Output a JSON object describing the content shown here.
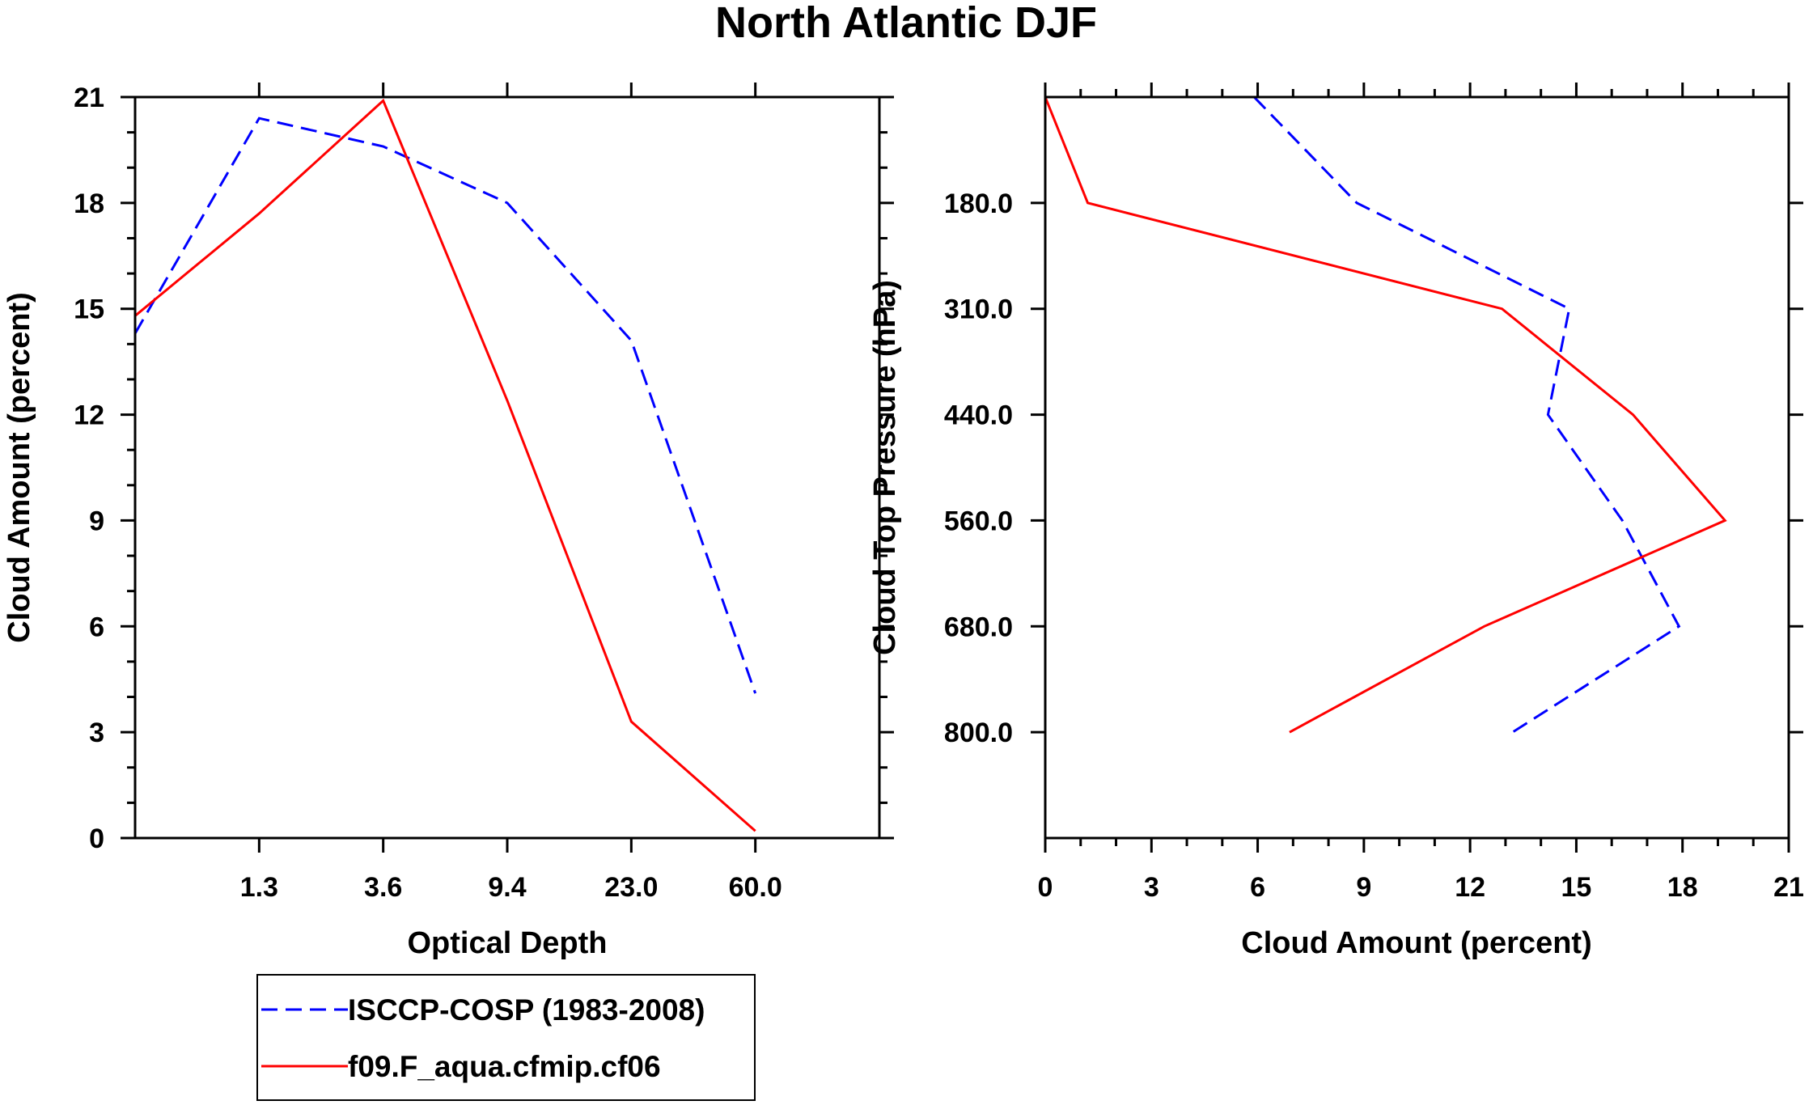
{
  "title": "North Atlantic DJF",
  "colors": {
    "obs": "#0000ff",
    "model": "#ff0000",
    "axes": "#000000"
  },
  "legend": {
    "entries": [
      {
        "label": "ISCCP-COSP (1983-2008)",
        "style": "dashed",
        "color": "#0000ff"
      },
      {
        "label": "f09.F_aqua.cfmip.cf06",
        "style": "solid",
        "color": "#ff0000"
      }
    ]
  },
  "chart_data": [
    {
      "type": "line",
      "xlabel": "Optical Depth",
      "ylabel": "Cloud Amount (percent)",
      "x_tick_labels": [
        "1.3",
        "3.6",
        "9.4",
        "23.0",
        "60.0"
      ],
      "y_ticks": [
        0,
        3,
        6,
        9,
        12,
        15,
        18,
        21
      ],
      "ylim": [
        0,
        21
      ],
      "x_bins": [
        "0.3",
        "1.3",
        "3.6",
        "9.4",
        "23.0",
        "60.0",
        "379"
      ],
      "series": [
        {
          "name": "ISCCP-COSP (1983-2008)",
          "style": "dashed",
          "values": [
            14.3,
            20.4,
            19.6,
            18.0,
            14.1,
            4.1
          ]
        },
        {
          "name": "f09.F_aqua.cfmip.cf06",
          "style": "solid",
          "values": [
            14.8,
            17.7,
            20.9,
            12.4,
            3.3,
            0.2
          ]
        }
      ]
    },
    {
      "type": "line",
      "xlabel": "Cloud Amount (percent)",
      "ylabel": "Cloud Top Pressure (hPa)",
      "x_ticks": [
        0,
        3,
        6,
        9,
        12,
        15,
        18,
        21
      ],
      "xlim": [
        0,
        21
      ],
      "y_tick_labels": [
        "180.0",
        "310.0",
        "440.0",
        "560.0",
        "680.0",
        "800.0"
      ],
      "y_bins": [
        "50",
        "180.0",
        "310.0",
        "440.0",
        "560.0",
        "680.0",
        "800.0",
        "1000"
      ],
      "series": [
        {
          "name": "ISCCP-COSP (1983-2008)",
          "style": "dashed",
          "values": [
            5.9,
            8.8,
            14.8,
            14.2,
            16.3,
            17.9,
            13.2
          ]
        },
        {
          "name": "f09.F_aqua.cfmip.cf06",
          "style": "solid",
          "values": [
            0.0,
            1.2,
            12.9,
            16.6,
            19.2,
            12.4,
            6.9
          ]
        }
      ]
    }
  ]
}
